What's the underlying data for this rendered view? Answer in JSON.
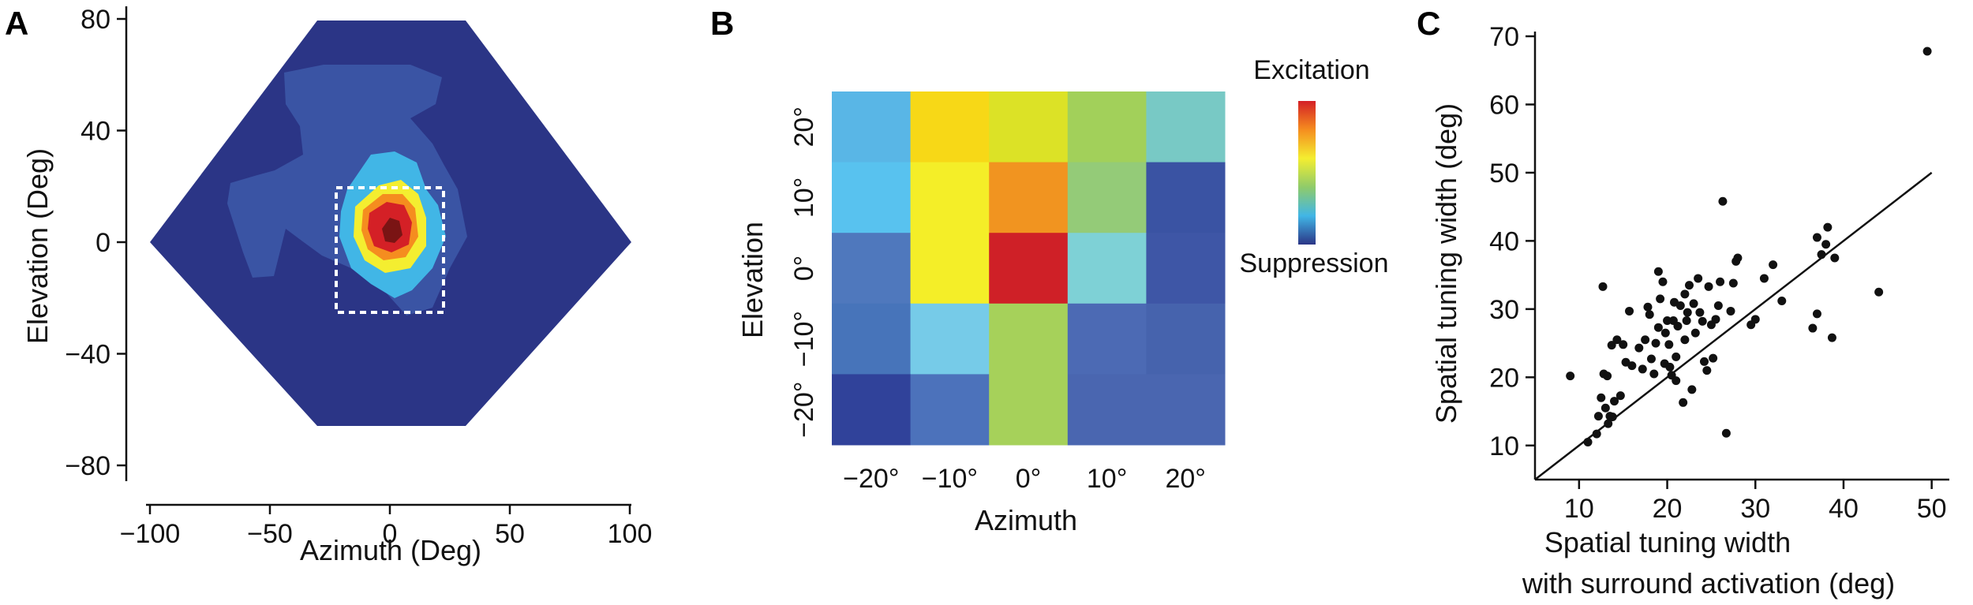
{
  "chart_data": [
    {
      "panel": "A",
      "type": "heatmap",
      "xlabel": "Azimuth (Deg)",
      "ylabel": "Elevation (Deg)",
      "xticks": [
        -100,
        -50,
        0,
        50,
        100
      ],
      "yticks": [
        80,
        40,
        0,
        -40,
        -80
      ],
      "xlim": [
        -100,
        100
      ],
      "ylim": [
        -85,
        85
      ],
      "grid": false,
      "peak": {
        "azimuth": 0,
        "elevation": 0
      },
      "dashed_box": {
        "azimuth": [
          -22,
          22
        ],
        "elevation": [
          -24,
          20
        ]
      },
      "colors": {
        "background": "#2b3586",
        "low": "#3a54a4",
        "mid": "#41b6e6",
        "yellow": "#f4ee30",
        "orange": "#f58d1f",
        "red": "#d42026",
        "dark_red": "#7a1414"
      }
    },
    {
      "panel": "B",
      "type": "heatmap",
      "xlabel": "Azimuth",
      "ylabel": "Elevation",
      "x": [
        "-20°",
        "-10°",
        "0°",
        "10°",
        "20°"
      ],
      "y": [
        "20°",
        "10°",
        "0°",
        "-10°",
        "-20°"
      ],
      "colors_grid": [
        [
          "#59b6e6",
          "#f7d817",
          "#dce226",
          "#a2d05a",
          "#78c9c5"
        ],
        [
          "#58c2ef",
          "#f4ee28",
          "#f19420",
          "#94cb78",
          "#3a53a3"
        ],
        [
          "#4f78bd",
          "#f4ee28",
          "#cf2027",
          "#7ed1d6",
          "#3e56a6"
        ],
        [
          "#4774ba",
          "#76cbe8",
          "#a6d15a",
          "#4c6ab4",
          "#4663ad"
        ],
        [
          "#30429a",
          "#4c72bb",
          "#a6d15a",
          "#4a66b0",
          "#4a66b0"
        ]
      ],
      "colorbar": {
        "top_label": "Excitation",
        "bottom_label": "Suppression",
        "stops": [
          "#d42026",
          "#f58d1f",
          "#f4ee30",
          "#8fcb6a",
          "#41b6e6",
          "#2b3586"
        ]
      }
    },
    {
      "panel": "C",
      "type": "scatter",
      "xlabel_lines": [
        "Spatial tuning width",
        "with surround activation (deg)"
      ],
      "ylabel": "Spatial tuning width (deg)",
      "xticks": [
        10,
        20,
        30,
        40,
        50
      ],
      "yticks": [
        10,
        20,
        30,
        40,
        50,
        60,
        70
      ],
      "xlim": [
        5,
        52
      ],
      "ylim": [
        5,
        70
      ],
      "grid": false,
      "reference_line": {
        "type": "identity",
        "from": [
          5,
          5
        ],
        "to": [
          50,
          50
        ]
      },
      "points": [
        [
          9.0,
          20.2
        ],
        [
          11.0,
          10.5
        ],
        [
          12.0,
          11.7
        ],
        [
          12.2,
          14.3
        ],
        [
          12.5,
          17.0
        ],
        [
          12.7,
          33.3
        ],
        [
          12.8,
          20.5
        ],
        [
          13.0,
          15.5
        ],
        [
          13.2,
          20.2
        ],
        [
          13.3,
          13.2
        ],
        [
          13.5,
          14.3
        ],
        [
          13.7,
          24.7
        ],
        [
          13.8,
          14.2
        ],
        [
          14.0,
          16.5
        ],
        [
          14.3,
          25.5
        ],
        [
          14.7,
          17.3
        ],
        [
          15.0,
          24.8
        ],
        [
          15.3,
          22.2
        ],
        [
          15.7,
          29.7
        ],
        [
          16.0,
          21.7
        ],
        [
          16.8,
          24.3
        ],
        [
          17.2,
          21.2
        ],
        [
          17.5,
          25.5
        ],
        [
          17.8,
          30.3
        ],
        [
          18.0,
          29.2
        ],
        [
          18.2,
          22.7
        ],
        [
          18.5,
          20.5
        ],
        [
          18.7,
          25.0
        ],
        [
          19.0,
          27.3
        ],
        [
          19.0,
          35.5
        ],
        [
          19.2,
          31.5
        ],
        [
          19.5,
          34.0
        ],
        [
          19.7,
          22.0
        ],
        [
          19.8,
          26.5
        ],
        [
          20.0,
          28.3
        ],
        [
          20.2,
          24.8
        ],
        [
          20.3,
          21.5
        ],
        [
          20.5,
          20.3
        ],
        [
          20.7,
          28.3
        ],
        [
          20.8,
          31.0
        ],
        [
          21.0,
          19.5
        ],
        [
          21.0,
          23.0
        ],
        [
          21.2,
          27.5
        ],
        [
          21.5,
          30.5
        ],
        [
          21.8,
          16.3
        ],
        [
          22.0,
          32.2
        ],
        [
          22.0,
          25.5
        ],
        [
          22.2,
          28.3
        ],
        [
          22.3,
          29.5
        ],
        [
          22.5,
          33.5
        ],
        [
          22.8,
          18.2
        ],
        [
          23.0,
          30.8
        ],
        [
          23.2,
          26.5
        ],
        [
          23.5,
          34.5
        ],
        [
          23.7,
          29.5
        ],
        [
          24.0,
          28.2
        ],
        [
          24.2,
          22.3
        ],
        [
          24.5,
          21.0
        ],
        [
          24.7,
          33.3
        ],
        [
          25.0,
          27.7
        ],
        [
          25.2,
          22.8
        ],
        [
          25.5,
          28.5
        ],
        [
          25.8,
          30.5
        ],
        [
          26.0,
          34.0
        ],
        [
          26.3,
          45.8
        ],
        [
          26.7,
          11.8
        ],
        [
          27.2,
          29.7
        ],
        [
          27.5,
          33.8
        ],
        [
          27.8,
          37.0
        ],
        [
          28.0,
          37.5
        ],
        [
          29.5,
          27.7
        ],
        [
          30.0,
          28.5
        ],
        [
          31.0,
          34.5
        ],
        [
          32.0,
          36.5
        ],
        [
          33.0,
          31.2
        ],
        [
          36.5,
          27.2
        ],
        [
          37.0,
          29.3
        ],
        [
          37.0,
          40.5
        ],
        [
          37.5,
          38.0
        ],
        [
          38.0,
          39.5
        ],
        [
          38.2,
          42.0
        ],
        [
          38.7,
          25.8
        ],
        [
          39.0,
          37.5
        ],
        [
          44.0,
          32.5
        ],
        [
          49.5,
          67.8
        ]
      ],
      "colors": {
        "marker": "#111111",
        "line": "#111111"
      }
    }
  ]
}
